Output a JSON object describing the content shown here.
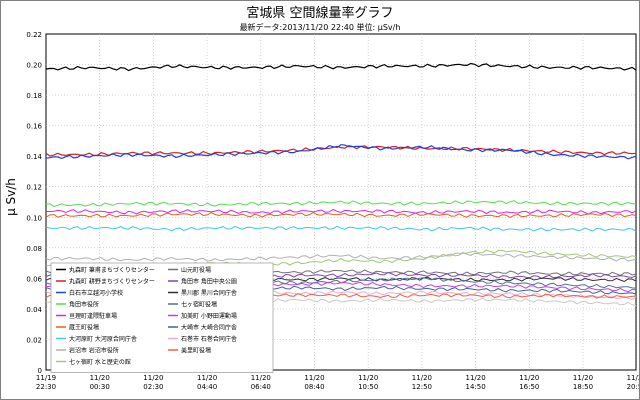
{
  "chart_data": {
    "type": "line",
    "title": "宮城県 空間線量率グラフ",
    "subtitle": "最新データ:2013/11/20 22:40   単位: μSv/h",
    "ylabel": "μ Sv/h",
    "xlabel": "",
    "ylim": [
      0,
      0.22
    ],
    "yticks": [
      "0",
      "0.02",
      "0.04",
      "0.06",
      "0.08",
      "0.10",
      "0.12",
      "0.14",
      "0.16",
      "0.18",
      "0.20",
      "0.22"
    ],
    "x_tick_labels": [
      [
        "11/19",
        "22:30"
      ],
      [
        "11/20",
        "00:30"
      ],
      [
        "11/20",
        "02:30"
      ],
      [
        "11/20",
        "04:40"
      ],
      [
        "11/20",
        "06:40"
      ],
      [
        "11/20",
        "08:40"
      ],
      [
        "11/20",
        "10:50"
      ],
      [
        "11/20",
        "12:50"
      ],
      [
        "11/20",
        "14:50"
      ],
      [
        "11/20",
        "16:50"
      ],
      [
        "11/20",
        "18:50"
      ],
      [
        "11/20",
        "20:50"
      ]
    ],
    "grid": true,
    "legend_position": "bottom-left",
    "series": [
      {
        "name": "丸森町 筆甫まちづくりセンター",
        "color": "#000000",
        "values": [
          0.197,
          0.198,
          0.197,
          0.199,
          0.198,
          0.198,
          0.199,
          0.198,
          0.199,
          0.199,
          0.2,
          0.199,
          0.198,
          0.198,
          0.197
        ]
      },
      {
        "name": "丸森町 耕野まちづくりセンター",
        "color": "#d62020",
        "values": [
          0.141,
          0.141,
          0.142,
          0.142,
          0.142,
          0.143,
          0.144,
          0.146,
          0.146,
          0.145,
          0.145,
          0.144,
          0.143,
          0.142,
          0.142
        ]
      },
      {
        "name": "白石市立越河小学校",
        "color": "#2040e0",
        "values": [
          0.139,
          0.14,
          0.141,
          0.14,
          0.141,
          0.142,
          0.143,
          0.147,
          0.145,
          0.146,
          0.144,
          0.144,
          0.141,
          0.14,
          0.139
        ]
      },
      {
        "name": "角田市役所",
        "color": "#50e050",
        "values": [
          0.108,
          0.108,
          0.109,
          0.109,
          0.108,
          0.109,
          0.109,
          0.11,
          0.109,
          0.109,
          0.11,
          0.11,
          0.109,
          0.109,
          0.109
        ]
      },
      {
        "name": "亘理町逢隈駐車場",
        "color": "#e020e0",
        "values": [
          0.104,
          0.104,
          0.103,
          0.104,
          0.104,
          0.103,
          0.104,
          0.104,
          0.104,
          0.103,
          0.104,
          0.103,
          0.104,
          0.103,
          0.104
        ]
      },
      {
        "name": "蔵王町役場",
        "color": "#e06020",
        "values": [
          0.101,
          0.101,
          0.101,
          0.102,
          0.102,
          0.101,
          0.102,
          0.102,
          0.101,
          0.102,
          0.101,
          0.101,
          0.101,
          0.102,
          0.101
        ]
      },
      {
        "name": "大河原町 大河原合同庁舎",
        "color": "#40c8e0",
        "values": [
          0.093,
          0.093,
          0.093,
          0.092,
          0.093,
          0.093,
          0.093,
          0.093,
          0.093,
          0.092,
          0.093,
          0.092,
          0.092,
          0.092,
          0.092
        ]
      },
      {
        "name": "岩沼市 岩沼市役所",
        "color": "#b0b0b0",
        "values": [
          0.073,
          0.073,
          0.072,
          0.073,
          0.072,
          0.073,
          0.074,
          0.075,
          0.073,
          0.074,
          0.076,
          0.075,
          0.074,
          0.073,
          0.072
        ]
      },
      {
        "name": "七ヶ宿町 水と歴史の館",
        "color": "#a0c878",
        "values": [
          0.068,
          0.069,
          0.068,
          0.069,
          0.07,
          0.069,
          0.07,
          0.072,
          0.071,
          0.073,
          0.077,
          0.078,
          0.076,
          0.075,
          0.074
        ]
      },
      {
        "name": "山元町役場",
        "color": "#707070",
        "values": [
          0.064,
          0.064,
          0.063,
          0.064,
          0.063,
          0.064,
          0.064,
          0.065,
          0.064,
          0.064,
          0.063,
          0.064,
          0.063,
          0.063,
          0.063
        ]
      },
      {
        "name": "角田市 角田中央公園",
        "color": "#8040c0",
        "values": [
          0.062,
          0.062,
          0.061,
          0.062,
          0.062,
          0.061,
          0.062,
          0.062,
          0.063,
          0.062,
          0.062,
          0.061,
          0.061,
          0.062,
          0.061
        ]
      },
      {
        "name": "黒川郡 黒川合同庁舎",
        "color": "#303030",
        "values": [
          0.059,
          0.059,
          0.06,
          0.059,
          0.059,
          0.06,
          0.059,
          0.06,
          0.059,
          0.06,
          0.059,
          0.059,
          0.06,
          0.059,
          0.059
        ]
      },
      {
        "name": "七ヶ宿町役場",
        "color": "#5070a0",
        "values": [
          0.057,
          0.057,
          0.057,
          0.058,
          0.057,
          0.058,
          0.057,
          0.058,
          0.059,
          0.06,
          0.058,
          0.057,
          0.056,
          0.055,
          0.054
        ]
      },
      {
        "name": "加美町 小野田運動場",
        "color": "#c040e0",
        "values": [
          0.055,
          0.055,
          0.056,
          0.055,
          0.055,
          0.056,
          0.056,
          0.057,
          0.056,
          0.055,
          0.055,
          0.055,
          0.054,
          0.053,
          0.052
        ]
      },
      {
        "name": "大崎市 大崎合同庁舎",
        "color": "#4060a0",
        "values": [
          0.053,
          0.053,
          0.053,
          0.054,
          0.053,
          0.053,
          0.054,
          0.053,
          0.054,
          0.053,
          0.053,
          0.052,
          0.052,
          0.051,
          0.05
        ]
      },
      {
        "name": "石巻市 石巻合同庁舎",
        "color": "#f0a8d8",
        "values": [
          0.051,
          0.051,
          0.05,
          0.051,
          0.05,
          0.051,
          0.05,
          0.051,
          0.05,
          0.051,
          0.05,
          0.05,
          0.049,
          0.048,
          0.047
        ]
      },
      {
        "name": "美里町役場",
        "color": "#f06040",
        "values": [
          0.048,
          0.048,
          0.048,
          0.049,
          0.048,
          0.049,
          0.049,
          0.049,
          0.048,
          0.049,
          0.049,
          0.048,
          0.049,
          0.048,
          0.048
        ]
      },
      {
        "name": "",
        "color": "#c8c8c8",
        "values": [
          0.044,
          0.044,
          0.045,
          0.044,
          0.045,
          0.045,
          0.046,
          0.045,
          0.046,
          0.045,
          0.046,
          0.046,
          0.045,
          0.044,
          0.043
        ]
      }
    ]
  }
}
